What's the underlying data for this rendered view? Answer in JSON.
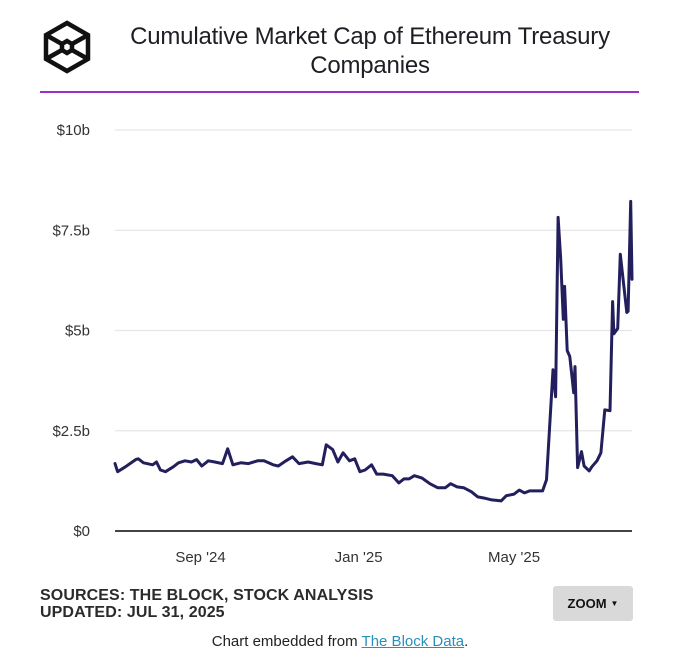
{
  "header": {
    "logo_icon": "the-block-hexagon-logo",
    "title": "Cumulative Market Cap of Ethereum Treasury Companies",
    "accent_color": "#9b2fc9"
  },
  "footer": {
    "sources": "SOURCES: THE BLOCK, STOCK ANALYSIS",
    "updated": "UPDATED: JUL 31, 2025",
    "zoom_label": "ZOOM",
    "zoom_caret_icon": "caret-down-icon",
    "embed_prefix": "Chart embedded from ",
    "embed_link": "The Block Data",
    "embed_suffix": "."
  },
  "chart_data": {
    "type": "line",
    "title": "Cumulative Market Cap of Ethereum Treasury Companies",
    "xlabel": "",
    "ylabel": "",
    "unit": "USD billions",
    "ylim": [
      0,
      10
    ],
    "y_ticks": [
      0,
      2.5,
      5,
      7.5,
      10
    ],
    "y_tick_labels": [
      "$0",
      "$2.5b",
      "$5b",
      "$7.5b",
      "$10b"
    ],
    "x_range": [
      "2024-06-27",
      "2025-07-31"
    ],
    "x_ticks": [
      "2024-09-01",
      "2025-01-01",
      "2025-05-01"
    ],
    "x_tick_labels": [
      "Sep '24",
      "Jan '25",
      "May '25"
    ],
    "grid": true,
    "legend": "none",
    "line_color": "#231f5c",
    "series": [
      {
        "name": "Cumulative Market Cap",
        "points": [
          [
            "2024-06-27",
            1.68
          ],
          [
            "2024-06-29",
            1.48
          ],
          [
            "2024-07-05",
            1.6
          ],
          [
            "2024-07-13",
            1.78
          ],
          [
            "2024-07-15",
            1.8
          ],
          [
            "2024-07-19",
            1.7
          ],
          [
            "2024-07-26",
            1.65
          ],
          [
            "2024-07-29",
            1.72
          ],
          [
            "2024-08-01",
            1.52
          ],
          [
            "2024-08-05",
            1.48
          ],
          [
            "2024-08-11",
            1.6
          ],
          [
            "2024-08-15",
            1.7
          ],
          [
            "2024-08-20",
            1.75
          ],
          [
            "2024-08-25",
            1.72
          ],
          [
            "2024-08-29",
            1.78
          ],
          [
            "2024-09-02",
            1.62
          ],
          [
            "2024-09-07",
            1.75
          ],
          [
            "2024-09-12",
            1.72
          ],
          [
            "2024-09-18",
            1.68
          ],
          [
            "2024-09-22",
            2.05
          ],
          [
            "2024-09-26",
            1.65
          ],
          [
            "2024-10-02",
            1.7
          ],
          [
            "2024-10-08",
            1.68
          ],
          [
            "2024-10-15",
            1.75
          ],
          [
            "2024-10-20",
            1.75
          ],
          [
            "2024-10-27",
            1.65
          ],
          [
            "2024-10-31",
            1.62
          ],
          [
            "2024-11-06",
            1.75
          ],
          [
            "2024-11-11",
            1.85
          ],
          [
            "2024-11-16",
            1.68
          ],
          [
            "2024-11-23",
            1.72
          ],
          [
            "2024-11-29",
            1.68
          ],
          [
            "2024-12-04",
            1.65
          ],
          [
            "2024-12-07",
            2.15
          ],
          [
            "2024-12-12",
            2.03
          ],
          [
            "2024-12-16",
            1.72
          ],
          [
            "2024-12-20",
            1.95
          ],
          [
            "2024-12-25",
            1.75
          ],
          [
            "2024-12-29",
            1.8
          ],
          [
            "2025-01-02",
            1.48
          ],
          [
            "2025-01-06",
            1.52
          ],
          [
            "2025-01-11",
            1.65
          ],
          [
            "2025-01-15",
            1.42
          ],
          [
            "2025-01-20",
            1.42
          ],
          [
            "2025-01-27",
            1.38
          ],
          [
            "2025-02-01",
            1.2
          ],
          [
            "2025-02-05",
            1.3
          ],
          [
            "2025-02-09",
            1.3
          ],
          [
            "2025-02-13",
            1.38
          ],
          [
            "2025-02-19",
            1.32
          ],
          [
            "2025-02-25",
            1.18
          ],
          [
            "2025-03-03",
            1.08
          ],
          [
            "2025-03-09",
            1.08
          ],
          [
            "2025-03-13",
            1.18
          ],
          [
            "2025-03-18",
            1.1
          ],
          [
            "2025-03-23",
            1.08
          ],
          [
            "2025-03-29",
            0.98
          ],
          [
            "2025-04-03",
            0.85
          ],
          [
            "2025-04-08",
            0.82
          ],
          [
            "2025-04-13",
            0.78
          ],
          [
            "2025-04-21",
            0.75
          ],
          [
            "2025-04-25",
            0.88
          ],
          [
            "2025-05-01",
            0.92
          ],
          [
            "2025-05-05",
            1.02
          ],
          [
            "2025-05-09",
            0.95
          ],
          [
            "2025-05-13",
            1.0
          ],
          [
            "2025-05-18",
            1.0
          ],
          [
            "2025-05-23",
            1.0
          ],
          [
            "2025-05-26",
            1.28
          ],
          [
            "2025-05-31",
            4.02
          ],
          [
            "2025-06-02",
            3.35
          ],
          [
            "2025-06-04",
            7.82
          ],
          [
            "2025-06-06",
            6.78
          ],
          [
            "2025-06-08",
            5.28
          ],
          [
            "2025-06-09",
            6.1
          ],
          [
            "2025-06-11",
            4.5
          ],
          [
            "2025-06-13",
            4.35
          ],
          [
            "2025-06-16",
            3.45
          ],
          [
            "2025-06-17",
            4.1
          ],
          [
            "2025-06-19",
            1.58
          ],
          [
            "2025-06-22",
            1.98
          ],
          [
            "2025-06-24",
            1.62
          ],
          [
            "2025-06-28",
            1.5
          ],
          [
            "2025-06-30",
            1.6
          ],
          [
            "2025-07-04",
            1.75
          ],
          [
            "2025-07-07",
            1.95
          ],
          [
            "2025-07-10",
            3.02
          ],
          [
            "2025-07-14",
            3.0
          ],
          [
            "2025-07-16",
            5.72
          ],
          [
            "2025-07-17",
            4.92
          ],
          [
            "2025-07-20",
            5.05
          ],
          [
            "2025-07-22",
            6.9
          ],
          [
            "2025-07-27",
            5.45
          ],
          [
            "2025-07-28",
            5.48
          ],
          [
            "2025-07-30",
            8.22
          ],
          [
            "2025-07-31",
            6.28
          ]
        ]
      }
    ]
  }
}
